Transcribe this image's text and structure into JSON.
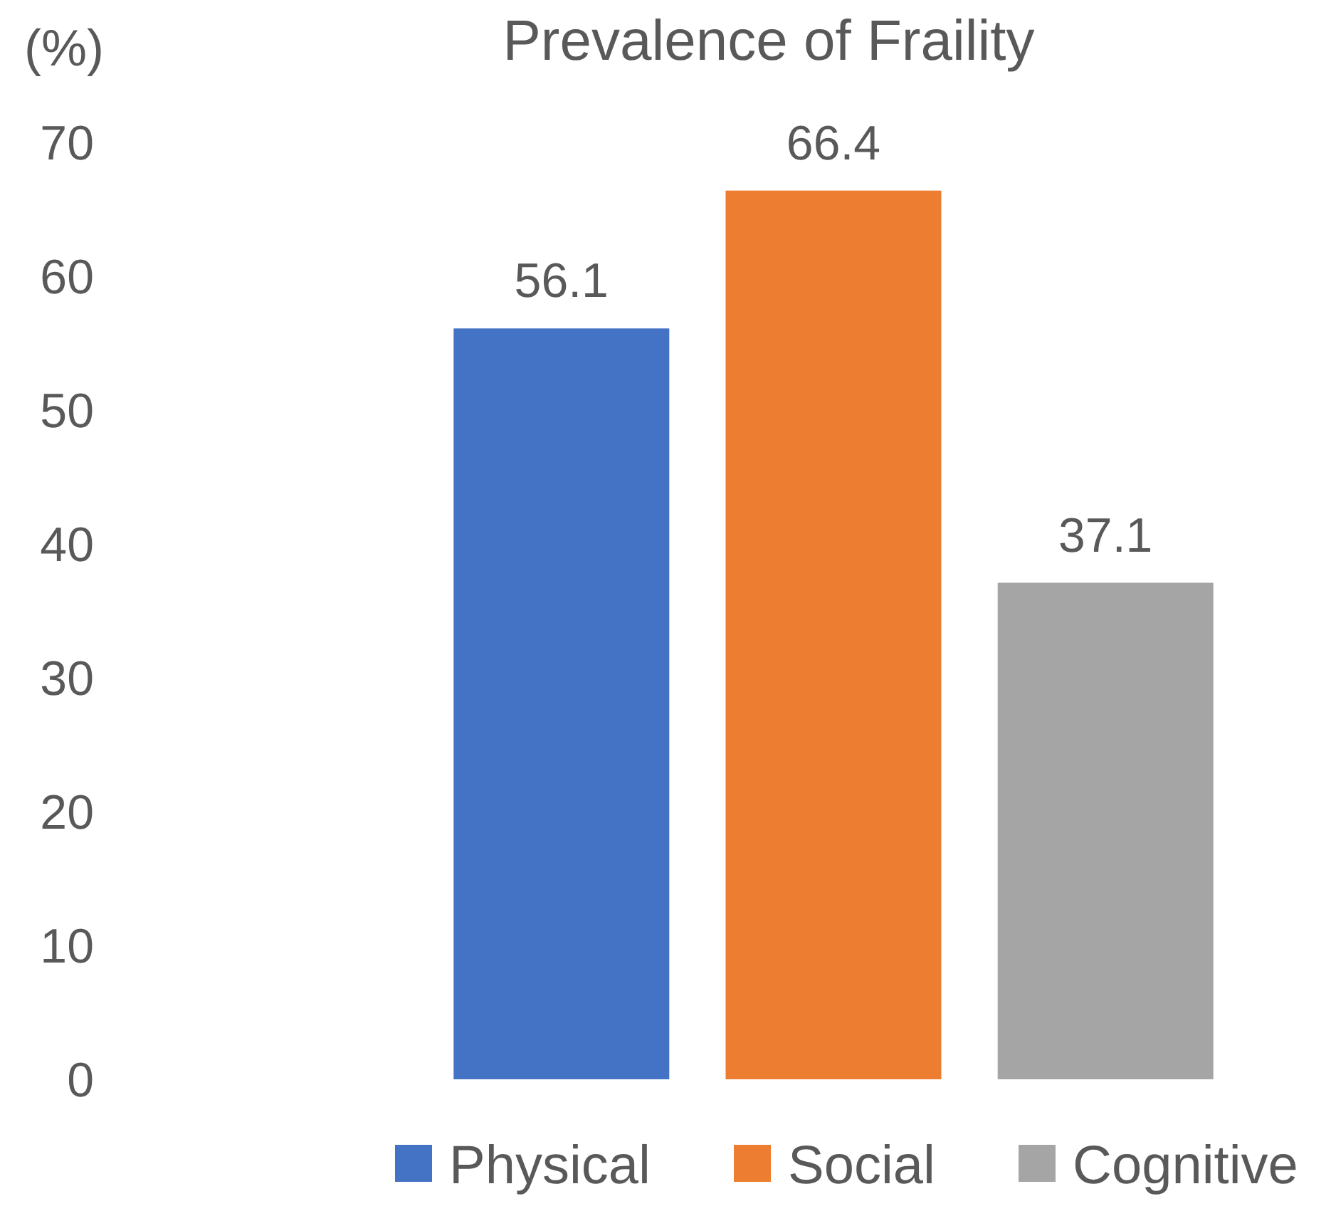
{
  "chart_data": {
    "type": "bar",
    "title": "Prevalence of Fraility",
    "ylabel": "(%)",
    "categories": [
      null
    ],
    "series": [
      {
        "name": "Physical",
        "color": "#4472c4",
        "values": [
          56.1
        ]
      },
      {
        "name": "Social",
        "color": "#ed7d31",
        "values": [
          66.4
        ]
      },
      {
        "name": "Cognitive",
        "color": "#a5a5a5",
        "values": [
          37.1
        ]
      }
    ],
    "ylim": [
      0,
      70
    ],
    "yticks": [
      0,
      10,
      20,
      30,
      40,
      50,
      60,
      70
    ],
    "data_labels": true,
    "legend": "bottom",
    "grid": false
  }
}
